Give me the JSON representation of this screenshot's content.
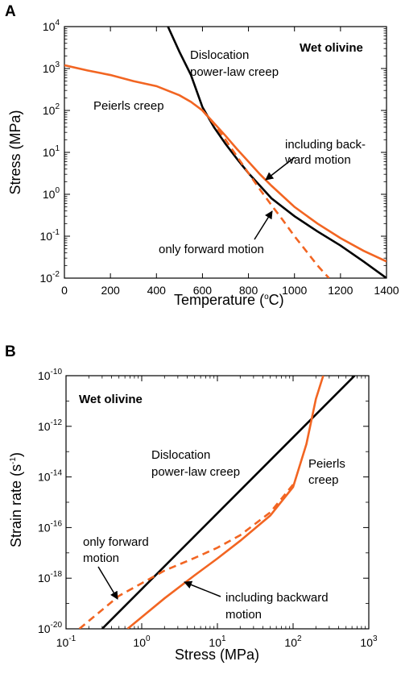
{
  "colors": {
    "dislocation": "#000000",
    "peierls": "#f26522",
    "axes": "#000000"
  },
  "chart_data": [
    {
      "type": "line",
      "panel_label": "A",
      "xlabel": "Temperature",
      "xlabel_unit_open": "(",
      "xlabel_unit_sup": "o",
      "xlabel_unit_rest": "C)",
      "ylabel": "Stress (MPa)",
      "xlim": [
        0,
        1400
      ],
      "ylim_log10": [
        -2,
        4
      ],
      "yscale": "log",
      "x_ticks": [
        "0",
        "200",
        "400",
        "600",
        "800",
        "1000",
        "1200",
        "1400"
      ],
      "y_ticks": [
        {
          "base": "10",
          "exp": "-2"
        },
        {
          "base": "10",
          "exp": "-1"
        },
        {
          "base": "10",
          "exp": "0"
        },
        {
          "base": "10",
          "exp": "1"
        },
        {
          "base": "10",
          "exp": "2"
        },
        {
          "base": "10",
          "exp": "3"
        },
        {
          "base": "10",
          "exp": "4"
        }
      ],
      "series": [
        {
          "key": "dislocation",
          "style": "solid",
          "x": [
            450,
            500,
            550,
            600,
            650,
            700,
            750,
            800,
            850,
            900,
            1000,
            1100,
            1200,
            1300,
            1400
          ],
          "y": [
            10000,
            2500,
            700,
            120,
            40,
            16,
            7,
            3.2,
            1.6,
            0.8,
            0.3,
            0.13,
            0.06,
            0.025,
            0.01
          ]
        },
        {
          "key": "peierls_backward",
          "style": "solid",
          "x": [
            0,
            100,
            200,
            300,
            400,
            500,
            550,
            600,
            650,
            700,
            750,
            800,
            850,
            900,
            1000,
            1100,
            1200,
            1300,
            1400
          ],
          "y": [
            1200,
            900,
            700,
            500,
            380,
            230,
            160,
            100,
            50,
            25,
            12,
            6,
            3,
            1.6,
            0.5,
            0.2,
            0.09,
            0.045,
            0.025
          ]
        },
        {
          "key": "peierls_forward",
          "style": "dashed",
          "x": [
            600,
            650,
            700,
            750,
            800,
            850,
            900,
            950,
            1000,
            1050,
            1100,
            1150
          ],
          "y": [
            100,
            48,
            20,
            8,
            3.2,
            1.3,
            0.55,
            0.24,
            0.1,
            0.045,
            0.02,
            0.01
          ]
        }
      ],
      "annotations": {
        "material": "Wet olivine",
        "dislocation_line1": "Dislocation",
        "dislocation_line2": "power-law creep",
        "peierls": "Peierls creep",
        "backward_line1": "including back-",
        "backward_line2": "ward motion",
        "forward": "only forward motion"
      }
    },
    {
      "type": "line",
      "panel_label": "B",
      "xlabel": "Stress (MPa)",
      "ylabel_main": "Strain rate (s",
      "ylabel_sup": "-1",
      "ylabel_close": ")",
      "xscale": "log",
      "yscale": "log",
      "xlim_log10": [
        -1,
        3
      ],
      "ylim_log10": [
        -20,
        -10
      ],
      "x_ticks": [
        {
          "base": "10",
          "exp": "-1"
        },
        {
          "base": "10",
          "exp": "0"
        },
        {
          "base": "10",
          "exp": "1"
        },
        {
          "base": "10",
          "exp": "2"
        },
        {
          "base": "10",
          "exp": "3"
        }
      ],
      "y_ticks": [
        {
          "base": "10",
          "exp": "-20"
        },
        {
          "base": "10",
          "exp": "-18"
        },
        {
          "base": "10",
          "exp": "-16"
        },
        {
          "base": "10",
          "exp": "-14"
        },
        {
          "base": "10",
          "exp": "-12"
        },
        {
          "base": "10",
          "exp": "-10"
        }
      ],
      "series": [
        {
          "key": "dislocation",
          "style": "solid",
          "x": [
            0.3,
            650
          ],
          "y": [
            1e-20,
            1e-10
          ]
        },
        {
          "key": "peierls_backward",
          "style": "solid",
          "x": [
            0.65,
            2,
            5,
            10,
            20,
            50,
            100,
            150,
            200,
            250
          ],
          "y": [
            1e-20,
            1.6e-19,
            1.3e-18,
            6e-18,
            3e-17,
            3e-16,
            4e-15,
            2e-13,
            1.2e-11,
            1e-10
          ]
        },
        {
          "key": "peierls_forward",
          "style": "dashed",
          "x": [
            0.15,
            0.5,
            1,
            2,
            5,
            10,
            20,
            50,
            100
          ],
          "y": [
            1e-20,
            2e-19,
            6.3e-19,
            2e-18,
            6.3e-18,
            1.6e-17,
            5e-17,
            4e-16,
            5e-15
          ]
        }
      ],
      "annotations": {
        "material": "Wet olivine",
        "dislocation_line1": "Dislocation",
        "dislocation_line2": "power-law creep",
        "peierls_line1": "Peierls",
        "peierls_line2": "creep",
        "forward_line1": "only forward",
        "forward_line2": "motion",
        "backward_line1": "including backward",
        "backward_line2": "motion"
      }
    }
  ]
}
